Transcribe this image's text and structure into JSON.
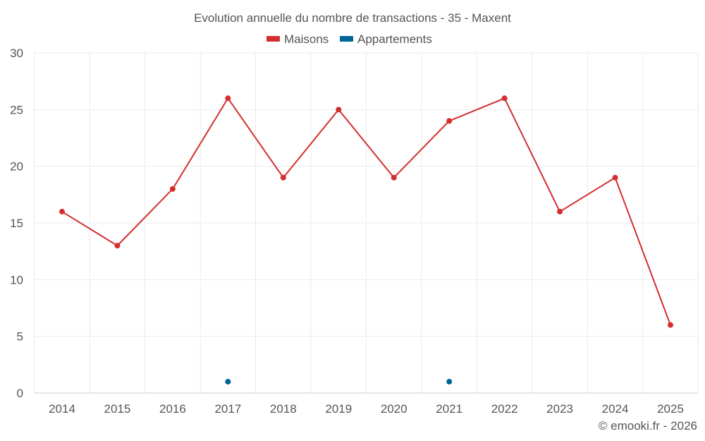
{
  "chart_data": {
    "type": "line",
    "title": "Evolution annuelle du nombre de transactions - 35 - Maxent",
    "categories": [
      "2014",
      "2015",
      "2016",
      "2017",
      "2018",
      "2019",
      "2020",
      "2021",
      "2022",
      "2023",
      "2024",
      "2025"
    ],
    "series": [
      {
        "name": "Maisons",
        "color": "#d32f2f",
        "values": [
          16,
          13,
          18,
          26,
          19,
          25,
          19,
          24,
          26,
          16,
          19,
          6
        ]
      },
      {
        "name": "Appartements",
        "color": "#006699",
        "values": [
          null,
          null,
          null,
          1,
          null,
          null,
          null,
          1,
          null,
          null,
          null,
          null
        ]
      }
    ],
    "yticks": [
      0,
      5,
      10,
      15,
      20,
      25,
      30
    ],
    "ylim": [
      0,
      30
    ],
    "xlabel": "",
    "ylabel": "",
    "grid": true,
    "legend": "top-center"
  },
  "credit": "© emooki.fr - 2026"
}
